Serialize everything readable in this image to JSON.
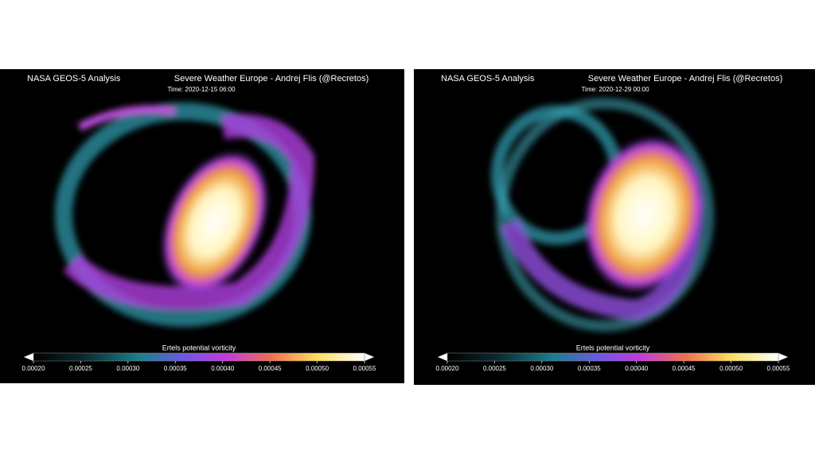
{
  "panels": [
    {
      "source": "NASA GEOS-5 Analysis",
      "credit": "Severe Weather Europe - Andrej Flis (@Recretos)",
      "time": "Time: 2020-12-15 06:00",
      "colorbar": {
        "label": "Ertels potential vorticity",
        "range": [
          0.0002,
          0.00055
        ],
        "ticks": [
          {
            "value": 0.0002,
            "label": "0.00020"
          },
          {
            "value": 0.00025,
            "label": "0.00025"
          },
          {
            "value": 0.0003,
            "label": "0.00030"
          },
          {
            "value": 0.00035,
            "label": "0.00035"
          },
          {
            "value": 0.0004,
            "label": "0.00040"
          },
          {
            "value": 0.00045,
            "label": "0.00045"
          },
          {
            "value": 0.0005,
            "label": "0.00050"
          },
          {
            "value": 0.00055,
            "label": "0.00055"
          }
        ]
      }
    },
    {
      "source": "NASA GEOS-5 Analysis",
      "credit": "Severe Weather Europe - Andrej Flis (@Recretos)",
      "time": "Time: 2020-12-29 00:00",
      "colorbar": {
        "label": "Ertels potential vorticity",
        "range": [
          0.0002,
          0.00055
        ],
        "ticks": [
          {
            "value": 0.0002,
            "label": "0.00020"
          },
          {
            "value": 0.00025,
            "label": "0.00025"
          },
          {
            "value": 0.0003,
            "label": "0.00030"
          },
          {
            "value": 0.00035,
            "label": "0.00035"
          },
          {
            "value": 0.0004,
            "label": "0.00040"
          },
          {
            "value": 0.00045,
            "label": "0.00045"
          },
          {
            "value": 0.0005,
            "label": "0.00050"
          },
          {
            "value": 0.00055,
            "label": "0.00055"
          }
        ]
      }
    }
  ]
}
